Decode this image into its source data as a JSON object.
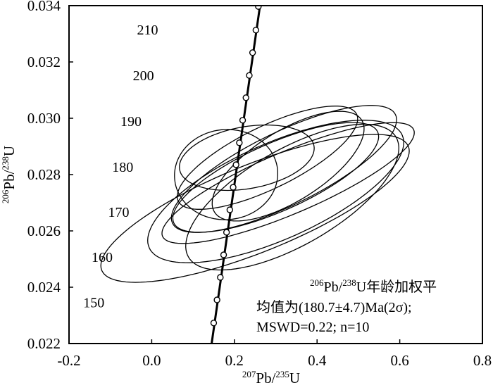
{
  "chart_data": {
    "type": "scatter",
    "title": "",
    "xlabel": {
      "base": "Pb/",
      "base2": "U",
      "sup1": "207",
      "sup2": "235"
    },
    "ylabel": {
      "base": "Pb/",
      "base2": "U",
      "sup1": "206",
      "sup2": "238"
    },
    "xlim": [
      -0.2,
      0.8
    ],
    "ylim": [
      0.022,
      0.034
    ],
    "xticks": [
      -0.2,
      0.0,
      0.2,
      0.4,
      0.6,
      0.8
    ],
    "xtick_labels": [
      "-0.2",
      "0.0",
      "0.2",
      "0.4",
      "0.6",
      "0.8"
    ],
    "yticks": [
      0.022,
      0.024,
      0.026,
      0.028,
      0.03,
      0.032,
      0.034
    ],
    "ytick_labels": [
      "0.022",
      "0.024",
      "0.026",
      "0.028",
      "0.030",
      "0.032",
      "0.034"
    ],
    "grid": false,
    "concordia_labels": [
      {
        "text": "210",
        "x": -0.01,
        "y": 0.03315
      },
      {
        "text": "200",
        "x": -0.02,
        "y": 0.03152
      },
      {
        "text": "190",
        "x": -0.05,
        "y": 0.0299
      },
      {
        "text": "180",
        "x": -0.07,
        "y": 0.02828
      },
      {
        "text": "170",
        "x": -0.08,
        "y": 0.02668
      },
      {
        "text": "160",
        "x": -0.12,
        "y": 0.02507
      },
      {
        "text": "150",
        "x": -0.14,
        "y": 0.02346
      }
    ],
    "concordia_points": [
      {
        "x": 0.15,
        "y": 0.02273
      },
      {
        "x": 0.158,
        "y": 0.02355
      },
      {
        "x": 0.166,
        "y": 0.02435
      },
      {
        "x": 0.174,
        "y": 0.02515
      },
      {
        "x": 0.181,
        "y": 0.02595
      },
      {
        "x": 0.189,
        "y": 0.02675
      },
      {
        "x": 0.197,
        "y": 0.02755
      },
      {
        "x": 0.204,
        "y": 0.02835
      },
      {
        "x": 0.212,
        "y": 0.02913
      },
      {
        "x": 0.22,
        "y": 0.02993
      },
      {
        "x": 0.228,
        "y": 0.03073
      },
      {
        "x": 0.236,
        "y": 0.03152
      },
      {
        "x": 0.244,
        "y": 0.03233
      },
      {
        "x": 0.252,
        "y": 0.03313
      },
      {
        "x": 0.258,
        "y": 0.03397
      }
    ],
    "concordia_line": [
      {
        "x": 0.145,
        "y": 0.022
      },
      {
        "x": 0.262,
        "y": 0.034
      }
    ],
    "ellipses": [
      {
        "cx": 0.25,
        "cy": 0.0268,
        "rx": 0.4,
        "ry": 0.00155,
        "angle_deg": 22
      },
      {
        "cx": 0.3,
        "cy": 0.0274,
        "rx": 0.335,
        "ry": 0.0017,
        "angle_deg": 24
      },
      {
        "cx": 0.32,
        "cy": 0.0282,
        "rx": 0.3,
        "ry": 0.0013,
        "angle_deg": 26
      },
      {
        "cx": 0.3,
        "cy": 0.0279,
        "rx": 0.27,
        "ry": 0.0012,
        "angle_deg": 24
      },
      {
        "cx": 0.28,
        "cy": 0.0286,
        "rx": 0.24,
        "ry": 0.0011,
        "angle_deg": 26
      },
      {
        "cx": 0.23,
        "cy": 0.0286,
        "rx": 0.165,
        "ry": 0.0011,
        "angle_deg": 10
      },
      {
        "cx": 0.18,
        "cy": 0.028,
        "rx": 0.125,
        "ry": 0.0016,
        "angle_deg": 5
      },
      {
        "cx": 0.33,
        "cy": 0.0283,
        "rx": 0.21,
        "ry": 0.00125,
        "angle_deg": 32
      },
      {
        "cx": 0.34,
        "cy": 0.0272,
        "rx": 0.29,
        "ry": 0.0017,
        "angle_deg": 30
      },
      {
        "cx": 0.33,
        "cy": 0.0277,
        "rx": 0.33,
        "ry": 0.0011,
        "angle_deg": 23
      }
    ],
    "annotation": {
      "line1_sup1": "206",
      "line1_a": "Pb/",
      "line1_sup2": "238",
      "line1_b": "U年龄加权平",
      "line2": "均值为(180.7±4.7)Ma(2σ);",
      "line3": "MSWD=0.22; n=10"
    }
  }
}
